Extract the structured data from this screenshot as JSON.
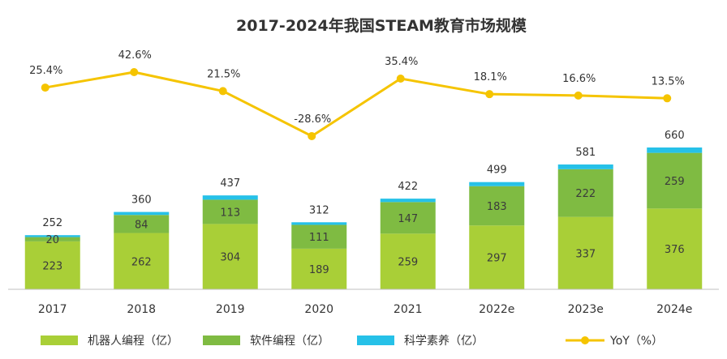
{
  "chart_data": {
    "type": "bar",
    "title": "2017-2024年我国STEAM教育市场规模",
    "categories": [
      "2017",
      "2018",
      "2019",
      "2020",
      "2021",
      "2022e",
      "2023e",
      "2024e"
    ],
    "series": [
      {
        "name": "机器人编程（亿）",
        "type": "bar",
        "stacked": true,
        "color": "#a9cf37",
        "values": [
          223,
          262,
          304,
          189,
          259,
          297,
          337,
          376
        ]
      },
      {
        "name": "软件编程（亿）",
        "type": "bar",
        "stacked": true,
        "color": "#7fbb42",
        "values": [
          20,
          84,
          113,
          111,
          147,
          183,
          222,
          259
        ]
      },
      {
        "name": "科学素养（亿）",
        "type": "bar",
        "stacked": true,
        "color": "#26c1e8",
        "values": [
          9,
          14,
          20,
          12,
          16,
          19,
          22,
          25
        ]
      },
      {
        "name": "YoY（%）",
        "type": "line",
        "color": "#f5c400",
        "values": [
          25.4,
          42.6,
          21.5,
          -28.6,
          35.4,
          18.1,
          16.6,
          13.5
        ]
      }
    ],
    "totals": [
      252,
      360,
      437,
      312,
      422,
      499,
      581,
      660
    ],
    "value_labels": {
      "bottom": [
        "223",
        "262",
        "304",
        "189",
        "259",
        "297",
        "337",
        "376"
      ],
      "middle": [
        "20",
        "84",
        "113",
        "111",
        "147",
        "183",
        "222",
        "259"
      ],
      "totals": [
        "252",
        "360",
        "437",
        "312",
        "422",
        "499",
        "581",
        "660"
      ],
      "yoy": [
        "25.4%",
        "42.6%",
        "21.5%",
        "-28.6%",
        "35.4%",
        "18.1%",
        "16.6%",
        "13.5%"
      ]
    },
    "ylim_bars": [
      0,
      660
    ],
    "ylim_yoy": [
      -28.6,
      42.6
    ],
    "legend_position": "bottom",
    "grid": false
  }
}
